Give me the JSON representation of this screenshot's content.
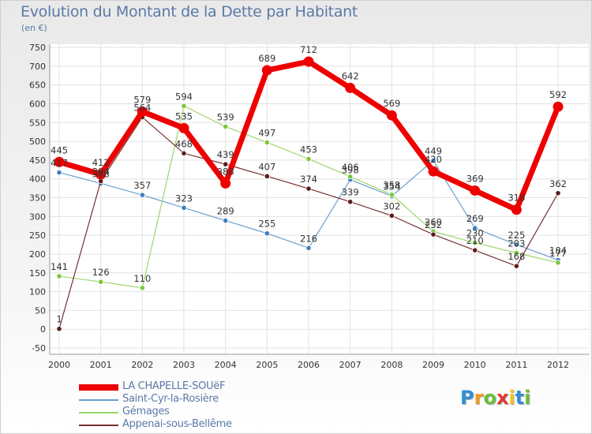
{
  "title": "Evolution du Montant de la Dette par Habitant",
  "subtitle": "(en €)",
  "logo": {
    "chars": [
      "P",
      "r",
      "o",
      "x",
      "i",
      "t",
      "i"
    ],
    "colors": [
      "#2f8fd8",
      "#f29a1a",
      "#6cbf3a",
      "#e23a2c",
      "#f2c41a",
      "#2f8fd8",
      "#6cbf3a"
    ]
  },
  "chart_data": {
    "type": "line",
    "title": "Evolution du Montant de la Dette par Habitant",
    "subtitle": "(en €)",
    "x": [
      "2000",
      "2001",
      "2002",
      "2003",
      "2004",
      "2005",
      "2006",
      "2007",
      "2008",
      "2009",
      "2010",
      "2011",
      "2012"
    ],
    "ylim": [
      -50,
      750
    ],
    "yticks": [
      -50,
      0,
      50,
      100,
      150,
      200,
      250,
      300,
      350,
      400,
      450,
      500,
      550,
      600,
      650,
      700,
      750
    ],
    "grid": true,
    "legend_position": "bottom-left",
    "series": [
      {
        "name": "Saint-Cyr-la-Rosière",
        "color": "#6a9fcf",
        "point_color": "#3f7fc0",
        "width": 1.2,
        "radius": 3.2,
        "values": [
          417,
          388,
          357,
          323,
          289,
          255,
          216,
          398,
          354,
          449,
          269,
          225,
          184
        ]
      },
      {
        "name": "Gémages",
        "color": "#9ed66a",
        "point_color": "#7cc63c",
        "width": 1.2,
        "radius": 3.2,
        "values": [
          141,
          126,
          110,
          594,
          539,
          497,
          453,
          406,
          358,
          260,
          230,
          203,
          177
        ]
      },
      {
        "name": "Appenai-sous-Bellême",
        "color": "#7a3030",
        "point_color": "#5e1c1c",
        "width": 1.2,
        "radius": 3.2,
        "values": [
          1,
          394,
          564,
          468,
          439,
          407,
          374,
          339,
          302,
          252,
          210,
          168,
          362
        ]
      },
      {
        "name": "LA CHAPELLE-SOUëF",
        "color": "#ee0000",
        "point_color": "#ee0000",
        "width": 7,
        "radius": 6.5,
        "values": [
          445,
          412,
          579,
          535,
          388,
          689,
          712,
          642,
          569,
          420,
          369,
          318,
          592
        ]
      }
    ],
    "legend_order": [
      "LA CHAPELLE-SOUëF",
      "Saint-Cyr-la-Rosière",
      "Gémages",
      "Appenai-sous-Bellême"
    ],
    "point_labels": {
      "Saint-Cyr-la-Rosière": [
        "417",
        "388",
        "357",
        "323",
        "289",
        "255",
        "216",
        "398",
        "354",
        "449",
        "269",
        "225",
        "184"
      ],
      "Gémages": [
        "141",
        "126",
        "110",
        "594",
        "539",
        "497",
        "453",
        "406",
        "358",
        "260",
        "230",
        "203",
        "177"
      ],
      "Appenai-sous-Bellême": [
        "1",
        "394",
        "564",
        "468",
        "439",
        "407",
        "374",
        "339",
        "302",
        "252",
        "210",
        "168",
        "362"
      ],
      "LA CHAPELLE-SOUëF": [
        "445",
        "412",
        "579",
        "535",
        "388",
        "689",
        "712",
        "642",
        "569",
        "420",
        "369",
        "318",
        "592"
      ]
    }
  }
}
